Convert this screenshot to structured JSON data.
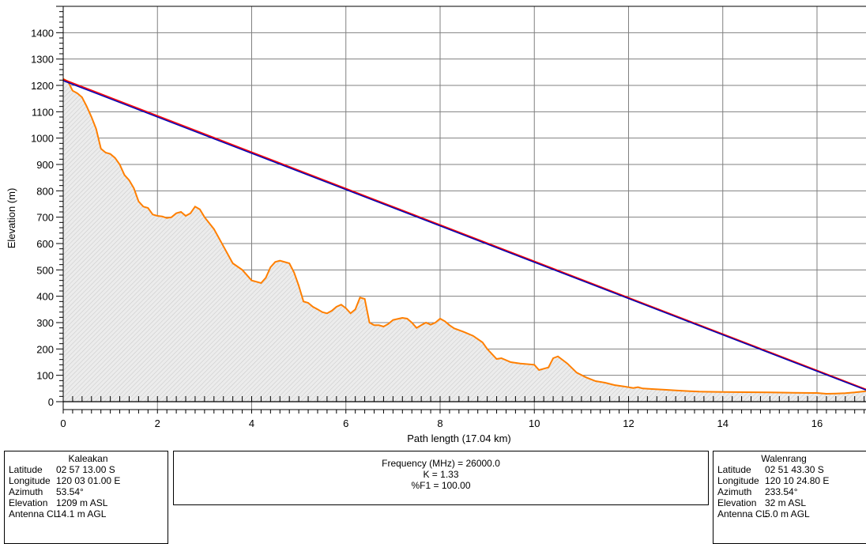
{
  "chart_data": {
    "type": "line",
    "xlabel": "Path length (17.04 km)",
    "ylabel": "Elevation (m)",
    "xlim": [
      0,
      17.04
    ],
    "ylim": [
      -30,
      1500
    ],
    "xticks": [
      0,
      2,
      4,
      6,
      8,
      10,
      12,
      14,
      16
    ],
    "yticks": [
      0,
      100,
      200,
      300,
      400,
      500,
      600,
      700,
      800,
      900,
      1000,
      1100,
      1200,
      1300,
      1400
    ],
    "grid": true,
    "colors": {
      "terrain": "#ff7f00",
      "fill": "#ececec",
      "los_red": "#ff0000",
      "los_blue": "#0000b4",
      "grid": "#808080"
    },
    "series": [
      {
        "role": "terrain",
        "x": [
          0,
          0.1,
          0.2,
          0.3,
          0.4,
          0.5,
          0.6,
          0.7,
          0.8,
          0.9,
          1.0,
          1.1,
          1.2,
          1.3,
          1.4,
          1.5,
          1.6,
          1.7,
          1.8,
          1.9,
          2.0,
          2.1,
          2.2,
          2.3,
          2.4,
          2.5,
          2.6,
          2.7,
          2.8,
          2.9,
          3.0,
          3.2,
          3.4,
          3.6,
          3.8,
          4.0,
          4.1,
          4.2,
          4.3,
          4.4,
          4.5,
          4.6,
          4.8,
          4.9,
          5.0,
          5.1,
          5.2,
          5.3,
          5.4,
          5.5,
          5.6,
          5.7,
          5.8,
          5.9,
          6.0,
          6.1,
          6.2,
          6.3,
          6.4,
          6.5,
          6.6,
          6.7,
          6.8,
          6.9,
          7.0,
          7.2,
          7.3,
          7.4,
          7.5,
          7.6,
          7.7,
          7.8,
          7.9,
          8.0,
          8.1,
          8.2,
          8.3,
          8.5,
          8.7,
          8.9,
          9.0,
          9.2,
          9.3,
          9.5,
          9.7,
          10.0,
          10.1,
          10.3,
          10.4,
          10.5,
          10.7,
          10.9,
          11.1,
          11.3,
          11.5,
          11.7,
          11.9,
          12.1,
          12.2,
          12.3,
          12.5,
          12.8,
          13.0,
          13.3,
          13.5,
          14.0,
          14.5,
          15.0,
          15.5,
          16.0,
          16.2,
          16.4,
          16.6,
          16.8,
          17.04
        ],
        "values": [
          1225,
          1215,
          1180,
          1170,
          1155,
          1120,
          1080,
          1035,
          960,
          945,
          940,
          925,
          900,
          860,
          840,
          810,
          760,
          740,
          735,
          710,
          705,
          703,
          697,
          700,
          715,
          720,
          705,
          715,
          740,
          730,
          700,
          655,
          590,
          525,
          500,
          460,
          455,
          450,
          470,
          510,
          530,
          535,
          525,
          490,
          440,
          380,
          375,
          360,
          350,
          340,
          335,
          345,
          360,
          368,
          355,
          335,
          350,
          395,
          390,
          300,
          290,
          290,
          285,
          295,
          310,
          318,
          315,
          300,
          280,
          290,
          300,
          292,
          300,
          315,
          305,
          290,
          278,
          265,
          250,
          225,
          200,
          162,
          165,
          150,
          145,
          140,
          120,
          130,
          165,
          172,
          145,
          110,
          92,
          78,
          72,
          63,
          58,
          52,
          55,
          50,
          48,
          45,
          43,
          40,
          38,
          37,
          36,
          35,
          34,
          33,
          30,
          31,
          32,
          35,
          40
        ]
      },
      {
        "role": "line-of-sight",
        "color": "red",
        "x": [
          0,
          17.04
        ],
        "values": [
          1223,
          47
        ]
      },
      {
        "role": "line-of-sight",
        "color": "blue",
        "x": [
          0,
          17.04
        ],
        "values": [
          1218,
          44
        ]
      }
    ]
  },
  "site_left": {
    "name": "Kaleakan",
    "rows": [
      {
        "k": "Latitude",
        "v": "02 57 13.00 S"
      },
      {
        "k": "Longitude",
        "v": "120 03 01.00 E"
      },
      {
        "k": "Azimuth",
        "v": "53.54°"
      },
      {
        "k": "Elevation",
        "v": "1209 m ASL"
      },
      {
        "k": "Antenna CL",
        "v": "14.1 m AGL"
      }
    ]
  },
  "site_right": {
    "name": "Walenrang",
    "rows": [
      {
        "k": "Latitude",
        "v": "02 51 43.30 S"
      },
      {
        "k": "Longitude",
        "v": "120 10 24.80 E"
      },
      {
        "k": "Azimuth",
        "v": "233.54°"
      },
      {
        "k": "Elevation",
        "v": "32 m ASL"
      },
      {
        "k": "Antenna CL",
        "v": "5.0 m AGL"
      }
    ]
  },
  "link": {
    "frequency": "Frequency (MHz) = 26000.0",
    "k": "K =  1.33",
    "f1": "%F1 = 100.00"
  }
}
